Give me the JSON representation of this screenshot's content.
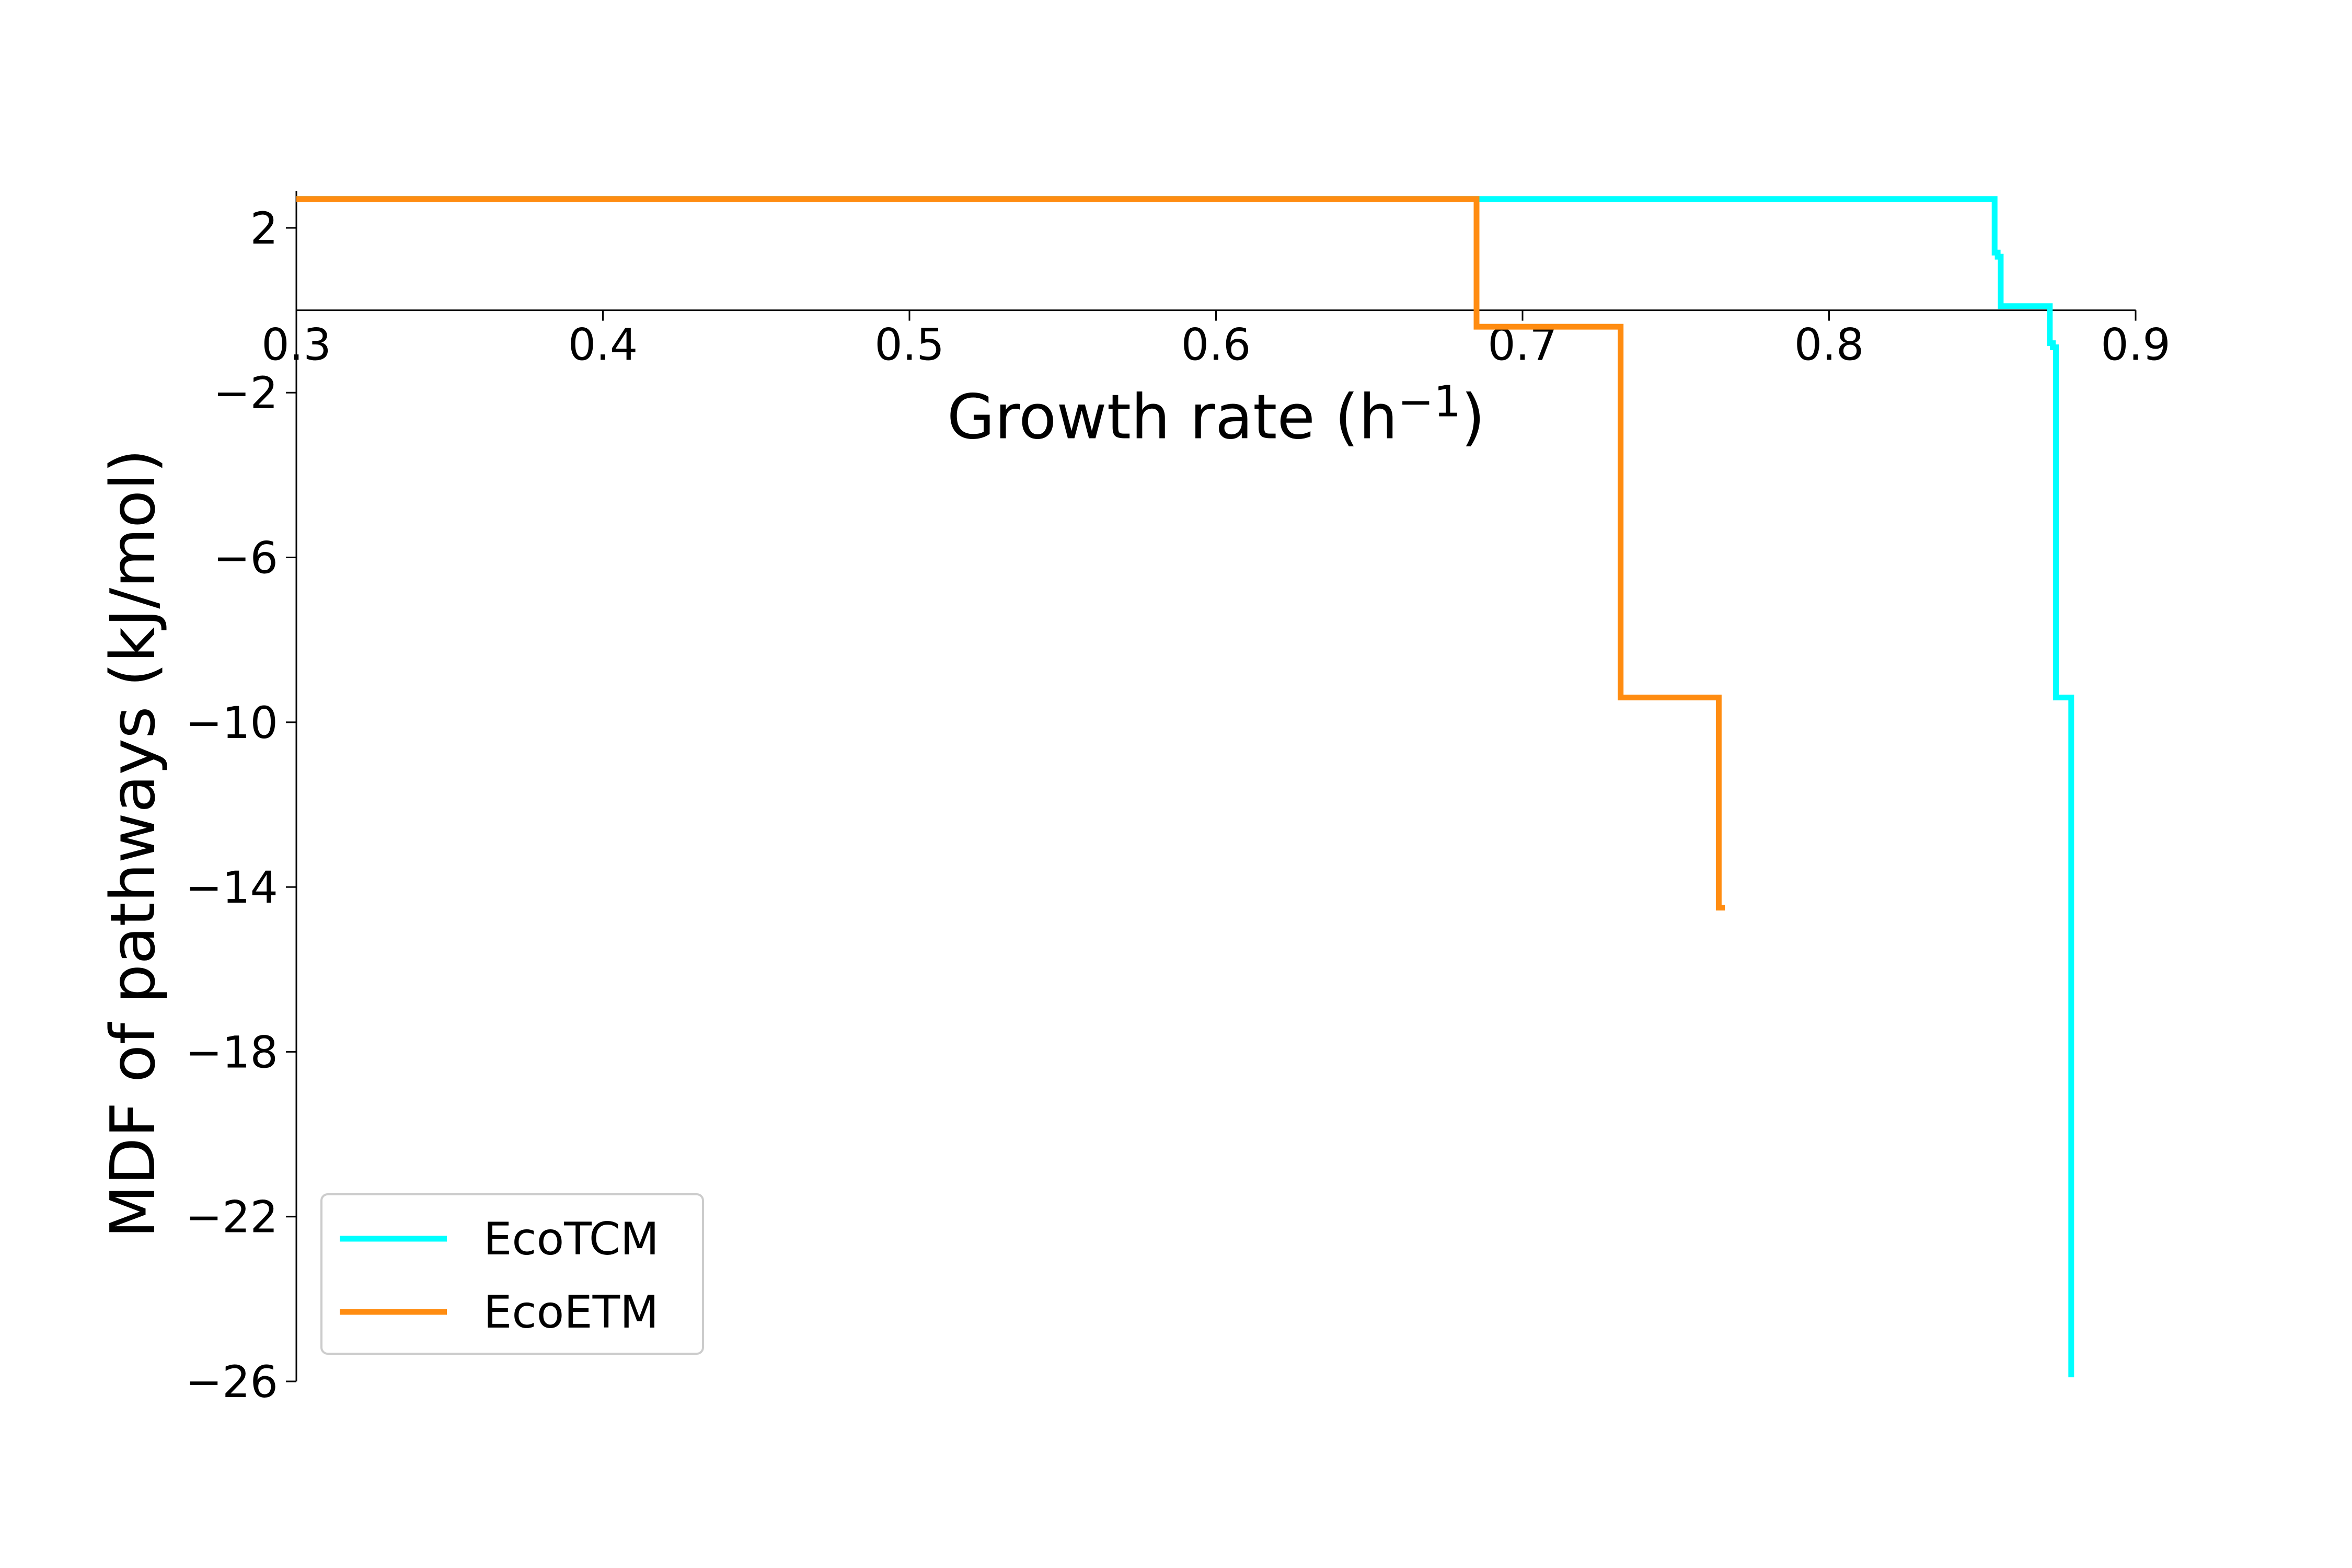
{
  "chart_data": {
    "type": "line",
    "title": "",
    "xlabel": "Growth rate (h$^-1$)",
    "ylabel": "MDF of pathways (kJ/mol)",
    "xlim": [
      0.3,
      0.9
    ],
    "ylim": [
      -26,
      2.9
    ],
    "x_ticks": [
      "0.3",
      "0.4",
      "0.5",
      "0.6",
      "0.7",
      "0.8",
      "0.9"
    ],
    "y_ticks": [
      "2",
      "−2",
      "−6",
      "−10",
      "−14",
      "−18",
      "−22",
      "−26"
    ],
    "grid": false,
    "legend_position": "lower-left",
    "series": [
      {
        "name": "EcoTCM",
        "color": "#00ffff",
        "step": true,
        "x": [
          0.3,
          0.854,
          0.854,
          0.855,
          0.855,
          0.856,
          0.856,
          0.872,
          0.872,
          0.873,
          0.873,
          0.874,
          0.874,
          0.879,
          0.879
        ],
        "y": [
          2.7,
          2.7,
          1.4,
          1.4,
          1.3,
          1.3,
          0.1,
          0.1,
          -0.8,
          -0.8,
          -0.9,
          -0.9,
          -9.4,
          -9.4,
          -25.9
        ]
      },
      {
        "name": "EcoETM",
        "color": "#ff8c11",
        "step": true,
        "x": [
          0.3,
          0.685,
          0.685,
          0.732,
          0.732,
          0.764,
          0.764,
          0.766
        ],
        "y": [
          2.7,
          2.7,
          -0.4,
          -0.4,
          -9.4,
          -9.4,
          -14.5,
          -14.5
        ]
      }
    ]
  }
}
